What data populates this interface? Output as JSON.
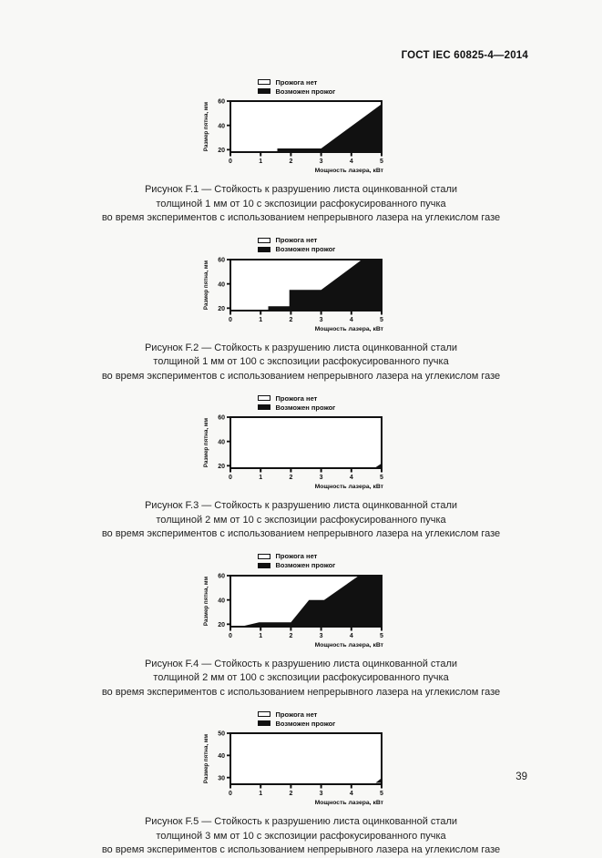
{
  "page": {
    "header": "ГОСТ IEC 60825-4—2014",
    "page_number": "39"
  },
  "colors": {
    "ink": "#111111",
    "paper": "#f8f8f6",
    "burn_fill": "#111111",
    "no_burn_fill": "#ffffff"
  },
  "chart_data": [
    {
      "id": "F.1",
      "type": "area",
      "xlabel": "Мощность лазера, кВт",
      "ylabel": "Размер пятна, мм",
      "legend": [
        "Прожога нет",
        "Возможен прожог"
      ],
      "xlim": [
        0,
        5
      ],
      "ylim": [
        18,
        60
      ],
      "xticks": [
        0,
        1,
        2,
        3,
        4,
        5
      ],
      "yticks": [
        20,
        40,
        60
      ],
      "burn_region": [
        [
          1.55,
          18.7
        ],
        [
          1.55,
          21
        ],
        [
          3,
          21
        ],
        [
          5,
          57.5
        ],
        [
          5,
          18.7
        ]
      ],
      "caption": [
        "Рисунок F.1 — Стойкость к разрушению листа оцинкованной стали",
        "толщиной 1 мм от 10 с экспозиции расфокусированного пучка",
        "во время экспериментов с использованием непрерывного лазера на углекислом газе"
      ]
    },
    {
      "id": "F.2",
      "type": "area",
      "xlabel": "Мощность лазера, кВт",
      "ylabel": "Размер пятна, мм",
      "legend": [
        "Прожога нет",
        "Возможен прожог"
      ],
      "xlim": [
        0,
        5
      ],
      "ylim": [
        18,
        60
      ],
      "xticks": [
        0,
        1,
        2,
        3,
        4,
        5
      ],
      "yticks": [
        20,
        40,
        60
      ],
      "burn_region": [
        [
          1.25,
          18.7
        ],
        [
          1.25,
          21.5
        ],
        [
          1.95,
          21.5
        ],
        [
          1.95,
          35
        ],
        [
          3,
          35
        ],
        [
          4.35,
          60
        ],
        [
          5,
          60
        ],
        [
          5,
          18.7
        ]
      ],
      "caption": [
        "Рисунок F.2 — Стойкость к разрушению листа оцинкованной стали",
        "толщиной 1 мм от 100 с экспозиции расфокусированного пучка",
        "во время экспериментов с использованием непрерывного лазера на углекислом газе"
      ]
    },
    {
      "id": "F.3",
      "type": "area",
      "xlabel": "Мощность лазера, кВт",
      "ylabel": "Размер пятна, мм",
      "legend": [
        "Прожога нет",
        "Возможен прожог"
      ],
      "xlim": [
        0,
        5
      ],
      "ylim": [
        18,
        60
      ],
      "xticks": [
        0,
        1,
        2,
        3,
        4,
        5
      ],
      "yticks": [
        20,
        40,
        60
      ],
      "burn_region": [
        [
          4.8,
          18.7
        ],
        [
          5,
          22
        ],
        [
          5,
          18.7
        ]
      ],
      "caption": [
        "Рисунок F.3 — Стойкость к разрушению листа оцинкованной стали",
        "толщиной 2 мм от 10 с экспозиции расфокусированного пучка",
        "во время экспериментов с использованием непрерывного лазера на углекислом газе"
      ]
    },
    {
      "id": "F.4",
      "type": "area",
      "xlabel": "Мощность лазера, кВт",
      "ylabel": "Размер пятна, мм",
      "legend": [
        "Прожога нет",
        "Возможен прожог"
      ],
      "xlim": [
        0,
        5
      ],
      "ylim": [
        18,
        60
      ],
      "xticks": [
        0,
        1,
        2,
        3,
        4,
        5
      ],
      "yticks": [
        20,
        40,
        60
      ],
      "burn_region": [
        [
          0.45,
          18.7
        ],
        [
          0.95,
          21.5
        ],
        [
          2,
          21.5
        ],
        [
          2.6,
          40
        ],
        [
          3.1,
          40
        ],
        [
          4.25,
          60
        ],
        [
          5,
          60
        ],
        [
          5,
          18.7
        ]
      ],
      "caption": [
        "Рисунок F.4 — Стойкость к разрушению листа оцинкованной стали",
        "толщиной 2 мм от 100 с экспозиции расфокусированного пучка",
        "во время экспериментов с использованием непрерывного лазера на углекислом газе"
      ]
    },
    {
      "id": "F.5",
      "type": "area",
      "xlabel": "Мощность лазера, кВт",
      "ylabel": "Размер пятна, мм",
      "legend": [
        "Прожога нет",
        "Возможен прожог"
      ],
      "xlim": [
        0,
        5
      ],
      "ylim": [
        27,
        50
      ],
      "xticks": [
        0,
        1,
        2,
        3,
        4,
        5
      ],
      "yticks": [
        30,
        40,
        50
      ],
      "burn_region": [
        [
          4.8,
          27.6
        ],
        [
          5,
          29.8
        ],
        [
          5,
          27.6
        ]
      ],
      "caption": [
        "Рисунок F.5 — Стойкость к разрушению листа оцинкованной стали",
        "толщиной 3 мм от 10 с экспозиции расфокусированного пучка",
        "во время экспериментов с использованием непрерывного лазера на углекислом газе"
      ]
    }
  ]
}
